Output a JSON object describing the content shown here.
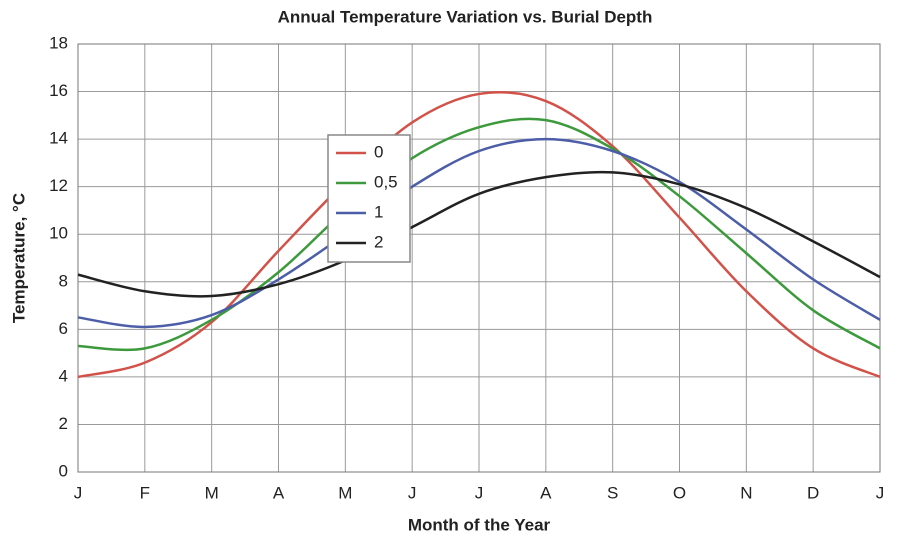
{
  "chart_data": {
    "type": "line",
    "title": "Annual Temperature Variation vs. Burial Depth",
    "x_label": "Month of the Year",
    "y_label": "Temperature, °C",
    "categories": [
      "J",
      "F",
      "M",
      "A",
      "M",
      "J",
      "J",
      "A",
      "S",
      "O",
      "N",
      "D",
      "J"
    ],
    "series": [
      {
        "name": "0",
        "color": "#d2524a",
        "values": [
          4.0,
          4.6,
          6.3,
          9.3,
          12.2,
          14.7,
          15.9,
          15.6,
          13.7,
          10.7,
          7.6,
          5.2,
          4.0
        ]
      },
      {
        "name": "0,5",
        "color": "#3c9a3c",
        "values": [
          5.3,
          5.2,
          6.4,
          8.4,
          11.0,
          13.2,
          14.5,
          14.8,
          13.6,
          11.6,
          9.2,
          6.8,
          5.2
        ]
      },
      {
        "name": "1",
        "color": "#4c5ea8",
        "values": [
          6.5,
          6.1,
          6.6,
          8.1,
          10.0,
          12.0,
          13.5,
          14.0,
          13.5,
          12.2,
          10.2,
          8.1,
          6.4
        ]
      },
      {
        "name": "2",
        "color": "#222222",
        "values": [
          8.3,
          7.6,
          7.4,
          7.9,
          8.9,
          10.3,
          11.7,
          12.4,
          12.6,
          12.1,
          11.1,
          9.7,
          8.2
        ]
      }
    ],
    "ylim": [
      0,
      18
    ],
    "yticks": [
      0,
      2,
      4,
      6,
      8,
      10,
      12,
      14,
      16,
      18
    ],
    "grid": true
  }
}
